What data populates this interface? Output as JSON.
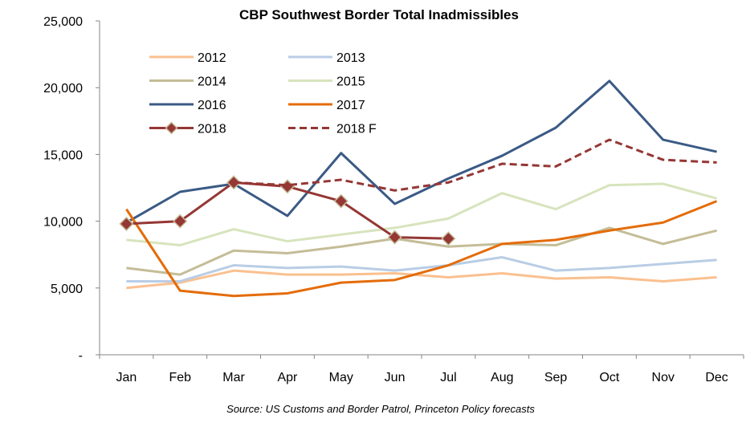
{
  "chart_data": {
    "type": "line",
    "title": "CBP Southwest Border Total Inadmissibles",
    "xlabel": "",
    "ylabel": "",
    "source": "Source: US Customs and Border Patrol, Princeton Policy forecasts",
    "ylim": [
      0,
      25000
    ],
    "y_ticks": [
      0,
      5000,
      10000,
      15000,
      20000,
      25000
    ],
    "y_tick_labels": [
      "-",
      "5,000",
      "10,000",
      "15,000",
      "20,000",
      "25,000"
    ],
    "categories": [
      "Jan",
      "Feb",
      "Mar",
      "Apr",
      "May",
      "Jun",
      "Jul",
      "Aug",
      "Sep",
      "Oct",
      "Nov",
      "Dec"
    ],
    "grid": false,
    "legend_position": "top-left",
    "series": [
      {
        "name": "2012",
        "color": "#fac090",
        "style": "solid",
        "markers": false,
        "values": [
          5000,
          5400,
          6300,
          6000,
          6000,
          6100,
          5800,
          6100,
          5700,
          5800,
          5500,
          5800
        ]
      },
      {
        "name": "2013",
        "color": "#b9cde5",
        "style": "solid",
        "markers": false,
        "values": [
          5500,
          5500,
          6700,
          6500,
          6600,
          6300,
          6700,
          7300,
          6300,
          6500,
          6800,
          7100
        ]
      },
      {
        "name": "2014",
        "color": "#c4bd97",
        "style": "solid",
        "markers": false,
        "values": [
          6500,
          6000,
          7800,
          7600,
          8100,
          8700,
          8100,
          8300,
          8200,
          9500,
          8300,
          9300
        ]
      },
      {
        "name": "2015",
        "color": "#d7e4bd",
        "style": "solid",
        "markers": false,
        "values": [
          8600,
          8200,
          9400,
          8500,
          9000,
          9500,
          10200,
          12100,
          10900,
          12700,
          12800,
          11700
        ]
      },
      {
        "name": "2016",
        "color": "#3b5a85",
        "style": "solid",
        "markers": false,
        "values": [
          9900,
          12200,
          12800,
          10400,
          15100,
          11300,
          13200,
          14900,
          17000,
          20500,
          16100,
          15200
        ]
      },
      {
        "name": "2017",
        "color": "#e46c0a",
        "style": "solid",
        "markers": false,
        "values": [
          10900,
          4800,
          4400,
          4600,
          5400,
          5600,
          6700,
          8300,
          8600,
          9300,
          9900,
          11500
        ]
      },
      {
        "name": "2018",
        "color": "#953735",
        "style": "solid",
        "markers": true,
        "values": [
          9800,
          10000,
          12900,
          12600,
          11500,
          8800,
          8700,
          null,
          null,
          null,
          null,
          null
        ]
      },
      {
        "name": "2018 F",
        "color": "#953735",
        "style": "dashed",
        "markers": false,
        "values": [
          null,
          null,
          12900,
          12700,
          13100,
          12300,
          12900,
          14300,
          14100,
          16100,
          14600,
          14400
        ]
      }
    ]
  }
}
